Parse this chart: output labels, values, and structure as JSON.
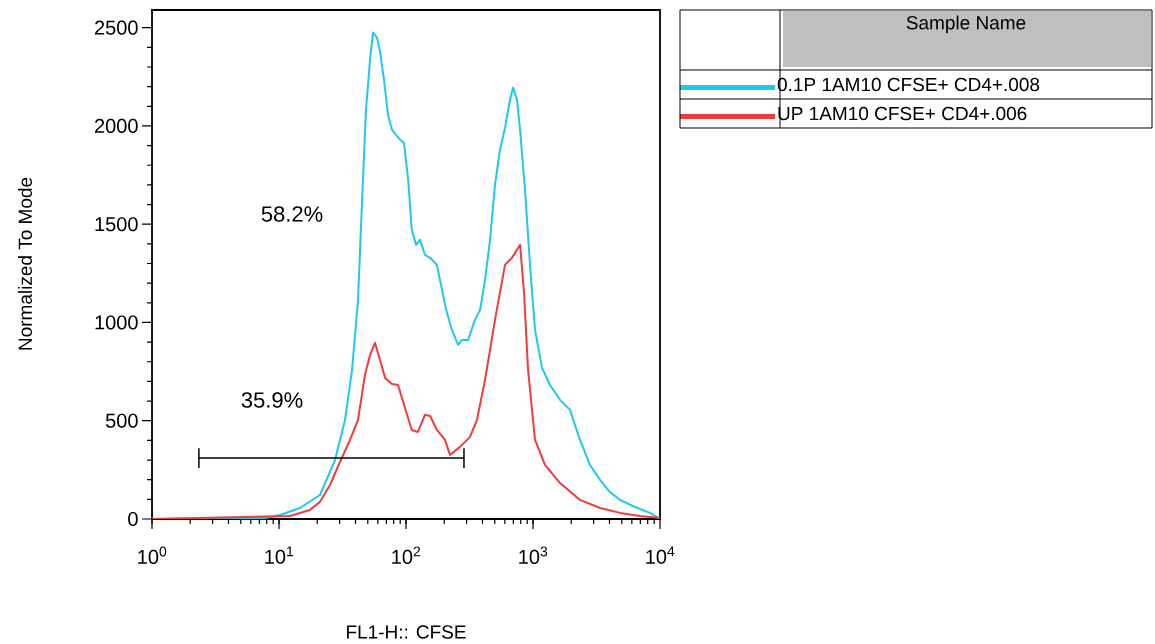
{
  "chart_data": {
    "type": "line",
    "xlabel": "FL1-H:: CFSE",
    "ylabel": "Normalized To Mode",
    "legend_title": "Sample Name",
    "legend": "right",
    "log": "x",
    "marker": "none",
    "line_style": "solid",
    "xlim": [
      1,
      10000
    ],
    "xticks": [
      {
        "value": 1,
        "label": "10$^{0}$"
      },
      {
        "value": 10,
        "label": "10$^{1}$"
      },
      {
        "value": 100,
        "label": "10$^{2}$"
      },
      {
        "value": 1000,
        "label": "10$^{3}$"
      },
      {
        "value": 10000,
        "label": "10$^{4}$"
      }
    ],
    "ylim": [
      0,
      2590
    ],
    "yticks": [
      0,
      500,
      1000,
      1500,
      2000,
      2500
    ],
    "series": [
      {
        "name": "0.1P 1AM10 CFSE+ CD4+.008",
        "color": "#1ec8f0",
        "x": [
          1,
          7.8,
          10.2,
          14.6,
          21,
          27.6,
          33.1,
          37.6,
          41.9,
          45.1,
          48.4,
          52.1,
          55,
          59.1,
          62.4,
          67.1,
          72.1,
          77.6,
          83.4,
          89.7,
          96.4,
          104,
          111,
          120,
          129,
          141,
          155,
          175,
          185,
          207,
          230,
          257,
          276,
          308,
          349,
          383,
          419,
          459,
          502,
          550,
          602,
          659,
          697,
          748,
          791,
          865,
          947,
          1037,
          1178,
          1361,
          1633,
          1955,
          2344,
          2811,
          3373,
          4036,
          4842,
          6353,
          8337,
          10000
        ],
        "values": [
          0,
          5,
          20,
          56,
          122,
          300,
          504,
          759,
          1115,
          1624,
          2083,
          2337,
          2475,
          2449,
          2378,
          2235,
          2057,
          1981,
          1955,
          1930,
          1914,
          1726,
          1471,
          1395,
          1421,
          1344,
          1329,
          1293,
          1217,
          1064,
          962,
          886,
          911,
          911,
          1013,
          1064,
          1217,
          1421,
          1701,
          1879,
          1991,
          2133,
          2195,
          2133,
          1981,
          1675,
          1293,
          962,
          769,
          682,
          606,
          555,
          402,
          275,
          199,
          137,
          97,
          61,
          31,
          0
        ]
      },
      {
        "name": "UP 1AM10 CFSE+ CD4+.006",
        "color": "#f03c3c",
        "x": [
          1,
          12.2,
          17.5,
          21,
          25.2,
          30.2,
          36.2,
          41.9,
          47.5,
          52.1,
          57,
          62.4,
          68.4,
          77.6,
          86.5,
          98.2,
          111,
          124,
          141,
          155,
          175,
          203,
          222,
          266,
          319,
          362,
          419,
          502,
          602,
          684,
          791,
          850,
          914,
          1037,
          1243,
          1633,
          2344,
          3373,
          4842,
          6966,
          10000
        ],
        "values": [
          0,
          15,
          46,
          87,
          173,
          290,
          402,
          504,
          733,
          835,
          896,
          810,
          718,
          687,
          682,
          565,
          453,
          443,
          530,
          524,
          453,
          402,
          326,
          367,
          418,
          504,
          708,
          1013,
          1293,
          1330,
          1395,
          1150,
          759,
          402,
          275,
          183,
          97,
          56,
          31,
          15,
          5
        ]
      },
      {
        "color": "#000000",
        "marker": "none",
        "x": [
          2.34,
          286
        ],
        "values": [
          310,
          310
        ],
        "errors": [
          50,
          50
        ]
      }
    ],
    "annotations": [
      "58.2%",
      "35.9%"
    ]
  }
}
